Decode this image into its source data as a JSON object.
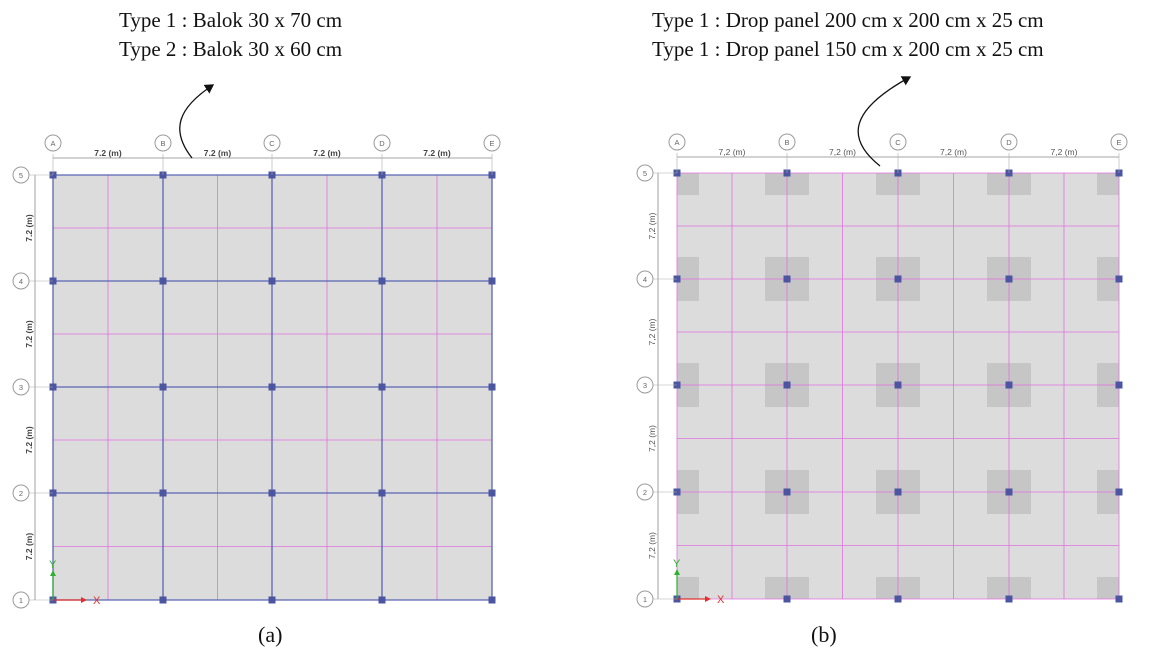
{
  "panel_a": {
    "caption_lines": [
      "Type 1 : Balok 30 x 70 cm",
      "Type 2 : Balok 30 x 60 cm"
    ],
    "label": "(a)"
  },
  "panel_b": {
    "caption_lines": [
      "Type 1 : Drop panel 200 cm x 200 cm x 25 cm",
      "Type 1 : Drop panel 150 cm x 200 cm x 25 cm"
    ],
    "label": "(b)"
  },
  "grid": {
    "columns": [
      "A",
      "B",
      "C",
      "D",
      "E"
    ],
    "rows": [
      "5",
      "4",
      "3",
      "2",
      "1"
    ],
    "span_label_a": "7.2 (m)",
    "span_label_b": "7,2 (m)"
  },
  "axes": {
    "x": "X",
    "y": "Y"
  },
  "colors": {
    "slab": "#dcdcdc",
    "beam": "#5a64b4",
    "column": "#4b55a0",
    "sub_grid": "#e070e0",
    "drop_panel": "#c6c6c6",
    "x_axis": "#e03030",
    "y_axis": "#30b030"
  }
}
